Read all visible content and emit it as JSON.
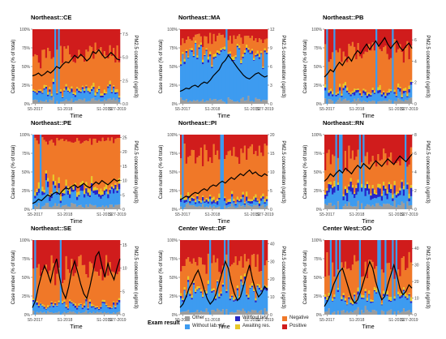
{
  "chart_data": [
    {
      "type": "area",
      "title": "Northeast::CE",
      "x_ticks": [
        "S5-2017",
        "S1-2018",
        "S1-2019",
        "S27-2019"
      ],
      "xlabel": "Time",
      "ylabel_left": "Case number (% of total)",
      "ylabel_right": "PM2.5 concentration (ug/m3)",
      "y_left_ticks": [
        "0%",
        "25%",
        "50%",
        "75%",
        "100%"
      ],
      "y_right_ticks": [
        "0.0",
        "2.5",
        "5.0",
        "7.5"
      ],
      "y_right_lim": [
        0,
        8
      ],
      "composition": {
        "Positive": 35,
        "Negative": 45,
        "Awaiting res.": 3,
        "Without test": 2,
        "Without lab. inf.": 10,
        "Other": 5
      },
      "pm25": [
        3.0,
        3.1,
        3.3,
        3.0,
        3.2,
        3.5,
        3.3,
        3.6,
        4.0,
        3.8,
        4.2,
        4.5,
        4.4,
        4.8,
        5.2,
        4.9,
        5.3,
        5.0,
        4.6,
        4.9,
        5.6,
        5.4,
        5.8,
        5.3,
        4.9,
        5.1,
        5.5,
        5.2,
        4.8,
        4.7
      ]
    },
    {
      "type": "area",
      "title": "Northeast::MA",
      "x_ticks": [
        "S5-2017",
        "S1-2018",
        "S1-2019",
        "S27-2019"
      ],
      "xlabel": "Time",
      "ylabel_left": "Case number (% of total)",
      "ylabel_right": "PM2.5 concentration (ug/m3)",
      "y_left_ticks": [
        "0%",
        "25%",
        "50%",
        "75%",
        "100%"
      ],
      "y_right_ticks": [
        "0",
        "3",
        "6",
        "9",
        "12"
      ],
      "y_right_lim": [
        0,
        12
      ],
      "composition": {
        "Positive": 12,
        "Negative": 18,
        "Awaiting res.": 3,
        "Without test": 2,
        "Without lab. inf.": 60,
        "Other": 5
      },
      "pm25": [
        2.0,
        2.2,
        2.5,
        2.4,
        2.8,
        3.0,
        2.7,
        3.2,
        3.5,
        3.3,
        3.8,
        4.5,
        5.0,
        5.5,
        6.5,
        7.0,
        7.8,
        7.2,
        6.5,
        5.8,
        5.2,
        4.6,
        4.2,
        4.0,
        4.4,
        4.8,
        5.0,
        4.6,
        4.3,
        4.5
      ]
    },
    {
      "type": "area",
      "title": "Northeast::PB",
      "x_ticks": [
        "S5-2017",
        "S1-2018",
        "S1-2019",
        "S27-2019"
      ],
      "xlabel": "Time",
      "ylabel_left": "Case number (% of total)",
      "ylabel_right": "PM2.5 concentration (ug/m3)",
      "y_left_ticks": [
        "0%",
        "25%",
        "50%",
        "75%",
        "100%"
      ],
      "y_right_ticks": [
        "0",
        "2",
        "4",
        "6"
      ],
      "y_right_lim": [
        0,
        7
      ],
      "composition": {
        "Positive": 30,
        "Negative": 52,
        "Awaiting res.": 3,
        "Without test": 3,
        "Without lab. inf.": 8,
        "Other": 4
      },
      "pm25": [
        2.5,
        2.8,
        3.2,
        3.0,
        3.5,
        3.9,
        3.6,
        4.1,
        4.4,
        4.0,
        4.6,
        5.0,
        4.7,
        5.2,
        5.6,
        5.1,
        5.5,
        5.9,
        5.4,
        5.8,
        6.2,
        5.6,
        5.2,
        5.6,
        5.9,
        5.3,
        5.0,
        5.4,
        5.7,
        5.2
      ]
    },
    {
      "type": "area",
      "title": "Northeast::PE",
      "x_ticks": [
        "S5-2017",
        "S1-2018",
        "S1-2019",
        "S27-2019"
      ],
      "xlabel": "Time",
      "ylabel_left": "Case number (% of total)",
      "ylabel_right": "PM2.5 concentration (ug/m3)",
      "y_left_ticks": [
        "0%",
        "25%",
        "50%",
        "75%",
        "100%"
      ],
      "y_right_ticks": [
        "0",
        "5",
        "10",
        "15",
        "20",
        "25"
      ],
      "y_right_lim": [
        0,
        26
      ],
      "composition": {
        "Positive": 8,
        "Negative": 62,
        "Awaiting res.": 5,
        "Without test": 5,
        "Without lab. inf.": 15,
        "Other": 5
      },
      "pm25": [
        2.0,
        2.5,
        3.5,
        3.0,
        4.0,
        5.0,
        4.5,
        5.5,
        6.0,
        5.2,
        6.5,
        7.5,
        7.0,
        8.0,
        8.5,
        7.5,
        8.2,
        9.0,
        8.0,
        7.5,
        8.5,
        9.5,
        8.8,
        10.0,
        9.2,
        8.5,
        9.5,
        10.5,
        9.8,
        10.2
      ]
    },
    {
      "type": "area",
      "title": "Northeast::PI",
      "x_ticks": [
        "S5-2017",
        "S1-2018",
        "S1-2019",
        "S27-2019"
      ],
      "xlabel": "Time",
      "ylabel_left": "Case number (% of total)",
      "ylabel_right": "PM2.5 concentration (ug/m3)",
      "y_left_ticks": [
        "0%",
        "25%",
        "50%",
        "75%",
        "100%"
      ],
      "y_right_ticks": [
        "0",
        "5",
        "10",
        "15",
        "20"
      ],
      "y_right_lim": [
        0,
        20
      ],
      "composition": {
        "Positive": 25,
        "Negative": 60,
        "Awaiting res.": 3,
        "Without test": 3,
        "Without lab. inf.": 5,
        "Other": 4
      },
      "pm25": [
        2.5,
        3.0,
        3.5,
        3.2,
        4.0,
        4.5,
        4.2,
        5.0,
        5.5,
        5.0,
        6.0,
        6.5,
        6.2,
        7.0,
        7.5,
        7.0,
        7.8,
        8.5,
        8.0,
        8.8,
        9.5,
        9.0,
        9.8,
        10.5,
        9.5,
        10.0,
        9.2,
        8.8,
        9.5,
        9.0
      ]
    },
    {
      "type": "area",
      "title": "Northeast::RN",
      "x_ticks": [
        "S5-2017",
        "S1-2018",
        "S1-2019",
        "S27-2019"
      ],
      "xlabel": "Time",
      "ylabel_left": "Case number (% of total)",
      "ylabel_right": "PM2.5 concentration (ug/m3)",
      "y_left_ticks": [
        "0%",
        "25%",
        "50%",
        "75%",
        "100%"
      ],
      "y_right_ticks": [
        "0",
        "2",
        "4",
        "6",
        "8"
      ],
      "y_right_lim": [
        0,
        8
      ],
      "composition": {
        "Positive": 30,
        "Negative": 40,
        "Awaiting res.": 4,
        "Without test": 8,
        "Without lab. inf.": 12,
        "Other": 6
      },
      "pm25": [
        3.0,
        3.3,
        3.8,
        3.5,
        3.9,
        4.2,
        3.9,
        4.4,
        4.1,
        3.8,
        4.3,
        4.7,
        4.4,
        4.9,
        4.6,
        4.3,
        4.8,
        5.2,
        4.9,
        4.6,
        5.0,
        5.4,
        5.1,
        4.8,
        5.3,
        5.7,
        5.4,
        5.1,
        5.5,
        5.9
      ]
    },
    {
      "type": "area",
      "title": "Northeast::SE",
      "x_ticks": [
        "S5-2017",
        "S1-2018",
        "S1-2019",
        "S27-2019"
      ],
      "xlabel": "Time",
      "ylabel_left": "Case number (% of total)",
      "ylabel_right": "PM2.5 concentration (ug/m3)",
      "y_left_ticks": [
        "0%",
        "25%",
        "50%",
        "75%",
        "100%"
      ],
      "y_right_ticks": [
        "0",
        "5",
        "10",
        "15"
      ],
      "y_right_lim": [
        0,
        16
      ],
      "composition": {
        "Positive": 40,
        "Negative": 45,
        "Awaiting res.": 2,
        "Without test": 2,
        "Without lab. inf.": 8,
        "Other": 3
      },
      "pm25": [
        1.5,
        3.0,
        6.0,
        8.5,
        10.5,
        9.0,
        7.0,
        10.0,
        12.0,
        8.0,
        5.0,
        3.5,
        6.0,
        9.5,
        11.5,
        9.0,
        6.5,
        4.5,
        3.5,
        6.0,
        9.0,
        12.5,
        13.5,
        10.5,
        8.0,
        11.0,
        9.0,
        7.5,
        10.0,
        12.0
      ]
    },
    {
      "type": "area",
      "title": "Center West::DF",
      "x_ticks": [
        "S5-2017",
        "S1-2018",
        "S1-2019",
        "S27-2019"
      ],
      "xlabel": "Time",
      "ylabel_left": "Case number (% of total)",
      "ylabel_right": "PM2.5 concentration (ug/m3)",
      "y_left_ticks": [
        "0%",
        "25%",
        "50%",
        "75%",
        "100%"
      ],
      "y_right_ticks": [
        "0",
        "10",
        "20",
        "30",
        "40"
      ],
      "y_right_lim": [
        0,
        42
      ],
      "composition": {
        "Positive": 30,
        "Negative": 35,
        "Awaiting res.": 3,
        "Without test": 2,
        "Without lab. inf.": 25,
        "Other": 5
      },
      "pm25": [
        4,
        6,
        10,
        15,
        18,
        22,
        25,
        20,
        14,
        9,
        6,
        8,
        12,
        18,
        24,
        30,
        26,
        18,
        12,
        8,
        10,
        16,
        22,
        28,
        20,
        14,
        10,
        12,
        16,
        14
      ]
    },
    {
      "type": "area",
      "title": "Center West::GO",
      "x_ticks": [
        "S5-2017",
        "S1-2018",
        "S1-2019",
        "S27-2019"
      ],
      "xlabel": "Time",
      "ylabel_left": "Case number (% of total)",
      "ylabel_right": "PM2.5 concentration (ug/m3)",
      "y_left_ticks": [
        "0%",
        "25%",
        "50%",
        "75%",
        "100%"
      ],
      "y_right_ticks": [
        "0",
        "10",
        "20",
        "30",
        "40"
      ],
      "y_right_lim": [
        0,
        45
      ],
      "composition": {
        "Positive": 35,
        "Negative": 40,
        "Awaiting res.": 3,
        "Without test": 2,
        "Without lab. inf.": 15,
        "Other": 5
      },
      "pm25": [
        5,
        8,
        12,
        18,
        22,
        26,
        28,
        22,
        16,
        10,
        7,
        9,
        14,
        20,
        26,
        32,
        28,
        20,
        14,
        9,
        11,
        18,
        24,
        30,
        24,
        16,
        12,
        14,
        18,
        16
      ]
    }
  ],
  "legend": {
    "title": "Exam result",
    "items": [
      {
        "key": "Other",
        "label": "Other",
        "color": "#9c9c9c"
      },
      {
        "key": "Without lab. inf.",
        "label": "Without lab. inf.",
        "color": "#3d9bf0"
      },
      {
        "key": "Without test",
        "label": "Without test",
        "color": "#2626c8"
      },
      {
        "key": "Awaiting res.",
        "label": "Awaiting res.",
        "color": "#e8c828"
      },
      {
        "key": "Negative",
        "label": "Negative",
        "color": "#f07828"
      },
      {
        "key": "Positive",
        "label": "Positive",
        "color": "#d01c1c"
      }
    ]
  }
}
